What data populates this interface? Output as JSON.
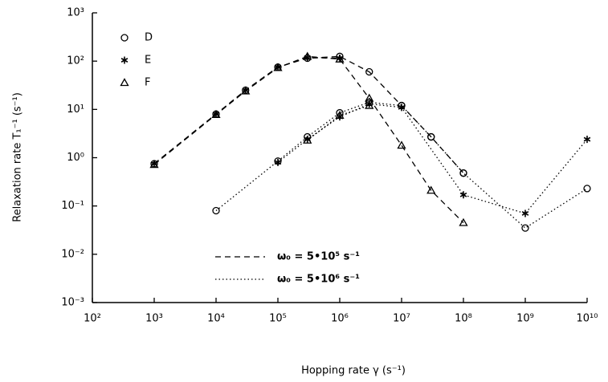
{
  "chart_data": {
    "type": "line",
    "x_label": "Hopping rate  γ   (s⁻¹)",
    "y_label": "Relaxation rate  T₁⁻¹   (s⁻¹)",
    "log_x": true,
    "log_y": true,
    "color": "#000000",
    "xlim": [
      100,
      10000000000
    ],
    "ylim": [
      0.001,
      1000
    ],
    "xticks": [
      {
        "value": 100,
        "label": "10²"
      },
      {
        "value": 1000,
        "label": "10³"
      },
      {
        "value": 10000,
        "label": "10⁴"
      },
      {
        "value": 100000,
        "label": "10⁵"
      },
      {
        "value": 1000000,
        "label": "10⁶"
      },
      {
        "value": 10000000,
        "label": "10⁷"
      },
      {
        "value": 100000000,
        "label": "10⁸"
      },
      {
        "value": 1000000000,
        "label": "10⁹"
      },
      {
        "value": 10000000000,
        "label": "10¹⁰"
      }
    ],
    "yticks": [
      {
        "value": 0.001,
        "label": "10⁻³"
      },
      {
        "value": 0.01,
        "label": "10⁻²"
      },
      {
        "value": 0.1,
        "label": "10⁻¹"
      },
      {
        "value": 1,
        "label": "10⁰"
      },
      {
        "value": 10,
        "label": "10¹"
      },
      {
        "value": 100,
        "label": "10²"
      },
      {
        "value": 1000,
        "label": "10³"
      }
    ],
    "line_styles": [
      {
        "label": "ω₀  =  5•10⁵ s⁻¹",
        "dash": "dashed"
      },
      {
        "label": "ω₀  =  5•10⁶ s⁻¹",
        "dash": "dotted"
      }
    ],
    "series": [
      {
        "name": "D",
        "marker": "circle",
        "line": "dashed",
        "x": [
          1000,
          10000,
          30000,
          100000,
          300000,
          1000000,
          3000000,
          10000000,
          30000000,
          100000000
        ],
        "values": [
          0.75,
          8,
          25,
          75,
          115,
          125,
          60,
          12,
          2.7,
          0.48
        ]
      },
      {
        "name": "E",
        "marker": "star",
        "line": "dashed",
        "x": [
          1000,
          10000,
          30000,
          100000,
          300000,
          1000000
        ],
        "values": [
          0.75,
          8,
          25,
          75,
          118,
          115
        ]
      },
      {
        "name": "F",
        "marker": "triangle",
        "line": "dashed",
        "x": [
          1000,
          10000,
          30000,
          100000,
          300000,
          1000000,
          3000000,
          10000000,
          30000000,
          100000000
        ],
        "values": [
          0.72,
          7.8,
          24,
          73,
          125,
          110,
          17,
          1.8,
          0.21,
          0.045
        ]
      },
      {
        "name": "D",
        "marker": "circle",
        "line": "dotted",
        "x": [
          10000,
          100000,
          300000,
          1000000,
          3000000,
          10000000,
          30000000,
          100000000,
          1000000000,
          10000000000
        ],
        "values": [
          0.08,
          0.85,
          2.7,
          8.5,
          14,
          12,
          2.7,
          0.48,
          0.035,
          0.23
        ]
      },
      {
        "name": "E",
        "marker": "star",
        "line": "dotted",
        "x": [
          100000,
          300000,
          1000000,
          3000000,
          10000000,
          100000000,
          1000000000,
          10000000000
        ],
        "values": [
          0.8,
          2.4,
          7,
          13,
          11,
          0.17,
          0.07,
          2.4
        ]
      },
      {
        "name": "F",
        "marker": "triangle",
        "line": "dotted",
        "x": [
          300000,
          1000000,
          3000000
        ],
        "values": [
          2.3,
          7.5,
          12
        ]
      }
    ]
  }
}
